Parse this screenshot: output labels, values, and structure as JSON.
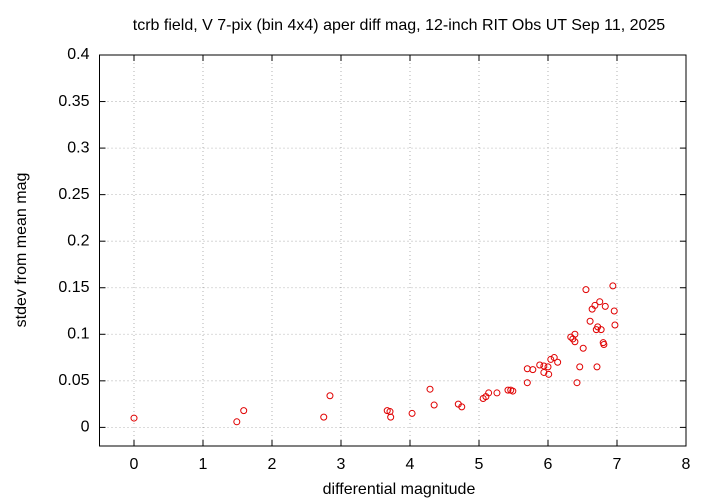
{
  "chart_data": {
    "type": "scatter",
    "title": "tcrb field, V 7-pix (bin 4x4) aper diff mag,  12-inch RIT Obs UT Sep 11, 2025",
    "xlabel": "differential magnitude",
    "ylabel": "stdev from mean mag",
    "color": "#e00000",
    "grid": true,
    "xlim": [
      -0.5,
      8
    ],
    "ylim": [
      -0.02,
      0.4
    ],
    "xticks": [
      0,
      1,
      2,
      3,
      4,
      5,
      6,
      7,
      8
    ],
    "yticks": [
      0,
      0.05,
      0.1,
      0.15,
      0.2,
      0.25,
      0.3,
      0.35,
      0.4
    ],
    "x": [
      0,
      1.49,
      1.59,
      2.75,
      2.84,
      3.67,
      3.71,
      3.72,
      4.03,
      4.29,
      4.35,
      4.7,
      4.75,
      5.06,
      5.1,
      5.14,
      5.26,
      5.42,
      5.46,
      5.49,
      5.7,
      5.7,
      5.78,
      5.88,
      5.94,
      5.94,
      6.0,
      6.01,
      6.04,
      6.09,
      6.14,
      6.33,
      6.36,
      6.39,
      6.39,
      6.42,
      6.46,
      6.51,
      6.55,
      6.61,
      6.64,
      6.68,
      6.7,
      6.71,
      6.72,
      6.77,
      6.75,
      6.8,
      6.81,
      6.83,
      6.94,
      6.96,
      6.97
    ],
    "values": [
      0.01,
      0.006,
      0.018,
      0.011,
      0.034,
      0.018,
      0.017,
      0.011,
      0.015,
      0.041,
      0.024,
      0.025,
      0.022,
      0.031,
      0.033,
      0.037,
      0.037,
      0.04,
      0.04,
      0.039,
      0.048,
      0.063,
      0.062,
      0.067,
      0.066,
      0.059,
      0.065,
      0.057,
      0.073,
      0.075,
      0.07,
      0.097,
      0.095,
      0.1,
      0.092,
      0.048,
      0.065,
      0.085,
      0.148,
      0.114,
      0.127,
      0.131,
      0.105,
      0.065,
      0.108,
      0.105,
      0.135,
      0.091,
      0.089,
      0.13,
      0.152,
      0.125,
      0.11
    ]
  }
}
